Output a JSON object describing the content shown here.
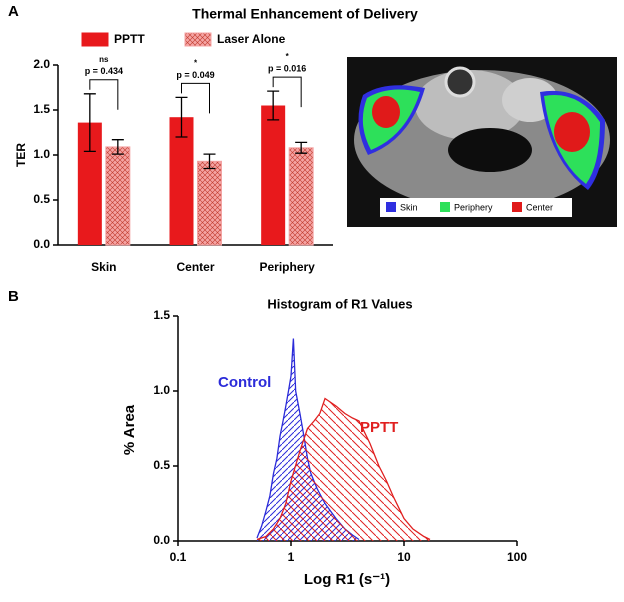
{
  "panel_labels": [
    "A",
    "B"
  ],
  "mri_legend": {
    "labels": [
      "Skin",
      "Periphery",
      "Center"
    ]
  },
  "chart_data": [
    {
      "type": "bar",
      "title": "Thermal Enhancement of Delivery",
      "y_label": "TER",
      "categories": [
        "Skin",
        "Center",
        "Periphery"
      ],
      "series": [
        {
          "name": "PPTT",
          "color": "#e8191c",
          "hatch": "none",
          "values": [
            1.36,
            1.42,
            1.55
          ],
          "errors": [
            0.32,
            0.22,
            0.16
          ]
        },
        {
          "name": "Laser Alone",
          "color": "#f4a3a3",
          "hatch": "cross",
          "values": [
            1.09,
            0.93,
            1.08
          ],
          "errors": [
            0.08,
            0.08,
            0.06
          ]
        }
      ],
      "annotations": [
        {
          "sig": "ns",
          "p": "p = 0.434"
        },
        {
          "sig": "*",
          "p": "p = 0.049"
        },
        {
          "sig": "*",
          "p": "p = 0.016"
        }
      ],
      "ylim": [
        0,
        2.0
      ],
      "yticks": [
        {
          "value": 0,
          "label": "0.0"
        },
        {
          "value": 0.5,
          "label": "0.5"
        },
        {
          "value": 1.0,
          "label": "1.0"
        },
        {
          "value": 1.5,
          "label": "1.5"
        },
        {
          "value": 2.0,
          "label": "2.0"
        }
      ]
    },
    {
      "type": "area",
      "title": "Histogram of R1 Values",
      "x_label": "Log R1 (s⁻¹)",
      "y_label": "% Area",
      "log_x": true,
      "series": [
        {
          "name": "Control",
          "color": "#2b2bd9",
          "hatch": "left",
          "x": [
            0.5,
            0.55,
            0.6,
            0.65,
            0.7,
            0.75,
            0.8,
            0.85,
            0.9,
            0.95,
            1.0,
            1.05,
            1.1,
            1.2,
            1.3,
            1.4,
            1.5,
            1.7,
            2.0,
            2.5,
            3.0,
            3.5,
            4.0
          ],
          "values": [
            0.02,
            0.1,
            0.2,
            0.3,
            0.45,
            0.55,
            0.7,
            0.8,
            0.9,
            1.0,
            1.1,
            1.35,
            1.0,
            0.85,
            0.7,
            0.55,
            0.45,
            0.35,
            0.25,
            0.15,
            0.08,
            0.04,
            0.01
          ]
        },
        {
          "name": "PPTT",
          "color": "#e02020",
          "hatch": "right",
          "x": [
            0.5,
            0.6,
            0.7,
            0.8,
            0.9,
            1.0,
            1.2,
            1.4,
            1.6,
            1.8,
            2.0,
            2.5,
            3.0,
            3.5,
            4.0,
            5,
            6,
            7,
            8,
            10,
            12,
            15,
            17
          ],
          "values": [
            0.01,
            0.03,
            0.08,
            0.15,
            0.25,
            0.4,
            0.6,
            0.75,
            0.8,
            0.85,
            0.95,
            0.9,
            0.85,
            0.82,
            0.8,
            0.65,
            0.5,
            0.4,
            0.3,
            0.15,
            0.08,
            0.03,
            0.01
          ]
        }
      ],
      "xlim": [
        0.1,
        100
      ],
      "xticks": [
        0.1,
        1,
        10,
        100
      ],
      "ylim": [
        0,
        1.5
      ],
      "yticks": [
        {
          "value": 0,
          "label": "0.0"
        },
        {
          "value": 0.5,
          "label": "0.5"
        },
        {
          "value": 1.0,
          "label": "1.0"
        },
        {
          "value": 1.5,
          "label": "1.5"
        }
      ]
    }
  ]
}
